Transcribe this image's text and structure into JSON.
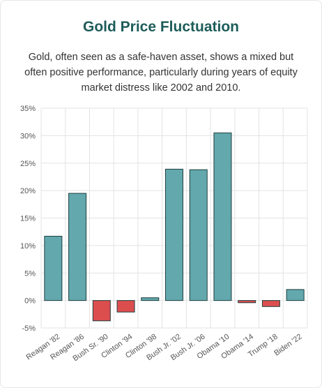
{
  "header": {
    "title": "Gold Price Fluctuation",
    "subtitle": "Gold, often seen as a safe-haven asset, shows a mixed but often positive performance, particularly during years of equity market distress like 2002 and 2010."
  },
  "chart_data": {
    "type": "bar",
    "title": "Gold Price Fluctuation",
    "xlabel": "",
    "ylabel": "",
    "categories": [
      "Reagan '82",
      "Reagan '86",
      "Bush Sr. '90",
      "Clinton '94",
      "Clinton '98",
      "Bush Jr. '02",
      "Bush Jr. '06",
      "Obama '10",
      "Obama '14",
      "Trump '18",
      "Biden '22"
    ],
    "values": [
      11.7,
      19.5,
      -3.7,
      -2.1,
      0.5,
      23.9,
      23.8,
      30.5,
      -0.4,
      -1.1,
      2.0
    ],
    "yticks": [
      "-5%",
      "0%",
      "5%",
      "10%",
      "15%",
      "20%",
      "25%",
      "30%",
      "35%"
    ],
    "ylim": [
      -5,
      35
    ],
    "grid": true,
    "legend": "none",
    "colors": {
      "positive": "#62a8ad",
      "negative": "#dc4e4e",
      "stroke": "#1f3f40",
      "grid": "#e3e3e3"
    }
  }
}
